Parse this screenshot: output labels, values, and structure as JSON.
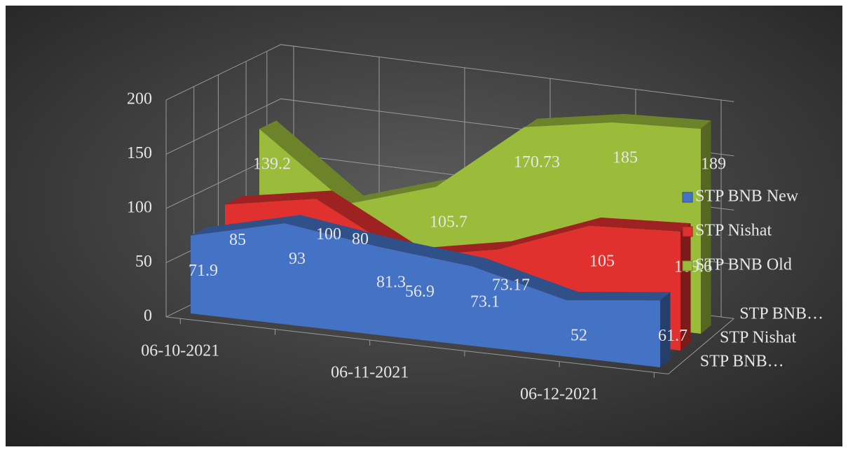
{
  "chart_data": {
    "type": "area3d",
    "categories": [
      "06-10-2021",
      null,
      "06-11-2021",
      null,
      "06-12-2021",
      null
    ],
    "series": [
      {
        "name": "STP BNB New",
        "color": "#4472c4",
        "values": [
          71.9,
          93,
          81.3,
          73.1,
          52,
          61.7
        ]
      },
      {
        "name": "STP Nishat",
        "color": "#e0312f",
        "values": [
          85,
          100,
          56.9,
          73.17,
          105,
          109.6
        ]
      },
      {
        "name": "STP BNB Old",
        "color": "#9bbb3b",
        "values": [
          139.2,
          80,
          105.7,
          170.73,
          185,
          189
        ]
      }
    ],
    "depth_labels": [
      "STP BNB…",
      "STP Nishat",
      "STP BNB…"
    ],
    "ylim": [
      0,
      200
    ],
    "yticks": [
      0,
      50,
      100,
      150,
      200
    ],
    "grid": true,
    "legend": "right"
  }
}
